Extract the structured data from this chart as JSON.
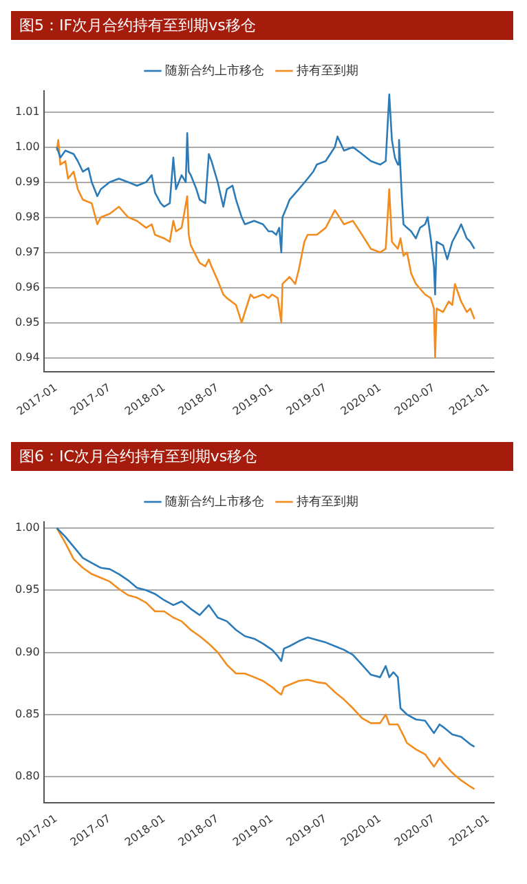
{
  "chart_data": [
    {
      "type": "line",
      "title": "图5：IF次月合约持有至到期vs移仓",
      "xlim": [
        "2016-11-20",
        "2021-01-20"
      ],
      "xticks": [
        "2017-01",
        "2017-07",
        "2018-01",
        "2018-07",
        "2019-01",
        "2019-07",
        "2020-01",
        "2020-07",
        "2021-01"
      ],
      "ylim": [
        0.936,
        1.016
      ],
      "yticks": [
        0.94,
        0.95,
        0.96,
        0.97,
        0.98,
        0.99,
        {
          "value": 1,
          "label": "1.00"
        },
        1.01
      ],
      "grid": "y",
      "legend": "top",
      "series": [
        {
          "name": "随新合约上市移仓",
          "color": "#2b7bb9",
          "x": [
            "2017-01-03",
            "2017-01-15",
            "2017-02-01",
            "2017-03-01",
            "2017-03-15",
            "2017-04-01",
            "2017-04-20",
            "2017-05-01",
            "2017-05-20",
            "2017-06-01",
            "2017-07-01",
            "2017-08-01",
            "2017-09-01",
            "2017-10-01",
            "2017-11-01",
            "2017-11-20",
            "2017-12-01",
            "2017-12-20",
            "2018-01-01",
            "2018-01-20",
            "2018-02-01",
            "2018-02-10",
            "2018-03-01",
            "2018-03-15",
            "2018-03-20",
            "2018-03-25",
            "2018-04-01",
            "2018-04-20",
            "2018-05-01",
            "2018-05-20",
            "2018-06-01",
            "2018-06-10",
            "2018-07-01",
            "2018-07-20",
            "2018-08-01",
            "2018-08-20",
            "2018-09-01",
            "2018-09-20",
            "2018-10-01",
            "2018-11-01",
            "2018-12-01",
            "2018-12-20",
            "2019-01-01",
            "2019-01-15",
            "2019-01-25",
            "2019-02-01",
            "2019-02-05",
            "2019-02-20",
            "2019-03-01",
            "2019-04-01",
            "2019-05-01",
            "2019-05-20",
            "2019-06-01",
            "2019-07-01",
            "2019-08-01",
            "2019-08-10",
            "2019-09-01",
            "2019-10-01",
            "2019-11-01",
            "2019-12-01",
            "2020-01-01",
            "2020-01-20",
            "2020-02-01",
            "2020-02-10",
            "2020-02-20",
            "2020-03-01",
            "2020-03-05",
            "2020-03-15",
            "2020-03-20",
            "2020-04-01",
            "2020-04-15",
            "2020-05-01",
            "2020-05-15",
            "2020-06-01",
            "2020-06-10",
            "2020-06-20",
            "2020-07-01",
            "2020-07-05",
            "2020-07-10",
            "2020-08-01",
            "2020-08-15",
            "2020-09-01",
            "2020-09-20",
            "2020-10-01",
            "2020-10-20",
            "2020-11-01",
            "2020-11-15"
          ],
          "values": [
            1.0,
            0.997,
            0.999,
            0.998,
            0.996,
            0.993,
            0.994,
            0.99,
            0.986,
            0.988,
            0.99,
            0.991,
            0.99,
            0.989,
            0.99,
            0.992,
            0.987,
            0.984,
            0.983,
            0.984,
            0.997,
            0.988,
            0.992,
            0.99,
            1.004,
            0.993,
            0.992,
            0.988,
            0.985,
            0.984,
            0.998,
            0.996,
            0.99,
            0.983,
            0.988,
            0.989,
            0.985,
            0.98,
            0.978,
            0.979,
            0.978,
            0.976,
            0.976,
            0.975,
            0.977,
            0.97,
            0.98,
            0.983,
            0.985,
            0.988,
            0.991,
            0.993,
            0.995,
            0.996,
            1.0,
            1.003,
            0.999,
            1.0,
            0.998,
            0.996,
            0.995,
            0.996,
            1.015,
            1.002,
            0.997,
            0.995,
            1.002,
            0.985,
            0.978,
            0.977,
            0.976,
            0.974,
            0.977,
            0.978,
            0.98,
            0.974,
            0.966,
            0.958,
            0.973,
            0.972,
            0.968,
            0.973,
            0.976,
            0.978,
            0.974,
            0.973,
            0.971
          ]
        },
        {
          "name": "持有至到期",
          "color": "#f28c1e",
          "x": [
            "2017-01-03",
            "2017-01-08",
            "2017-01-15",
            "2017-02-01",
            "2017-02-10",
            "2017-03-01",
            "2017-03-15",
            "2017-04-01",
            "2017-05-01",
            "2017-05-20",
            "2017-06-01",
            "2017-07-01",
            "2017-08-01",
            "2017-09-01",
            "2017-10-01",
            "2017-11-01",
            "2017-11-20",
            "2017-12-01",
            "2018-01-01",
            "2018-01-20",
            "2018-02-01",
            "2018-02-10",
            "2018-03-01",
            "2018-03-20",
            "2018-03-25",
            "2018-04-01",
            "2018-05-01",
            "2018-05-20",
            "2018-06-01",
            "2018-06-10",
            "2018-07-01",
            "2018-07-20",
            "2018-08-01",
            "2018-09-01",
            "2018-09-20",
            "2018-10-01",
            "2018-10-20",
            "2018-11-01",
            "2018-12-01",
            "2018-12-20",
            "2019-01-01",
            "2019-01-20",
            "2019-02-01",
            "2019-02-05",
            "2019-03-01",
            "2019-03-20",
            "2019-04-01",
            "2019-04-20",
            "2019-05-01",
            "2019-06-01",
            "2019-07-01",
            "2019-08-01",
            "2019-09-01",
            "2019-10-01",
            "2019-11-01",
            "2019-12-01",
            "2020-01-01",
            "2020-01-20",
            "2020-02-01",
            "2020-02-10",
            "2020-03-01",
            "2020-03-10",
            "2020-03-20",
            "2020-04-01",
            "2020-04-15",
            "2020-05-01",
            "2020-06-01",
            "2020-06-20",
            "2020-07-01",
            "2020-07-05",
            "2020-07-10",
            "2020-08-01",
            "2020-08-20",
            "2020-09-01",
            "2020-09-10",
            "2020-10-01",
            "2020-10-20",
            "2020-11-01",
            "2020-11-15"
          ],
          "values": [
            0.999,
            1.002,
            0.995,
            0.996,
            0.991,
            0.993,
            0.988,
            0.985,
            0.984,
            0.978,
            0.98,
            0.981,
            0.983,
            0.98,
            0.979,
            0.977,
            0.978,
            0.975,
            0.974,
            0.973,
            0.979,
            0.976,
            0.977,
            0.986,
            0.975,
            0.972,
            0.967,
            0.966,
            0.968,
            0.966,
            0.962,
            0.958,
            0.957,
            0.955,
            0.95,
            0.953,
            0.958,
            0.957,
            0.958,
            0.957,
            0.958,
            0.957,
            0.95,
            0.961,
            0.963,
            0.961,
            0.965,
            0.973,
            0.975,
            0.975,
            0.977,
            0.982,
            0.978,
            0.979,
            0.975,
            0.971,
            0.97,
            0.971,
            0.988,
            0.973,
            0.971,
            0.974,
            0.969,
            0.97,
            0.964,
            0.961,
            0.958,
            0.957,
            0.954,
            0.94,
            0.954,
            0.953,
            0.956,
            0.955,
            0.961,
            0.956,
            0.953,
            0.954,
            0.951
          ]
        }
      ]
    },
    {
      "type": "line",
      "title": "图6：IC次月合约持有至到期vs移仓",
      "xlim": [
        "2016-11-20",
        "2021-01-20"
      ],
      "xticks": [
        "2017-01",
        "2017-07",
        "2018-01",
        "2018-07",
        "2019-01",
        "2019-07",
        "2020-01",
        "2020-07",
        "2021-01"
      ],
      "ylim": [
        0.779,
        1.005
      ],
      "yticks": [
        {
          "value": 0.8,
          "label": "0.80"
        },
        0.85,
        {
          "value": 0.9,
          "label": "0.90"
        },
        0.95,
        {
          "value": 1,
          "label": "1.00"
        }
      ],
      "grid": "y",
      "legend": "top",
      "series": [
        {
          "name": "随新合约上市移仓",
          "color": "#2b7bb9",
          "x": [
            "2017-01-03",
            "2017-02-01",
            "2017-03-01",
            "2017-04-01",
            "2017-05-01",
            "2017-06-01",
            "2017-07-01",
            "2017-08-01",
            "2017-09-01",
            "2017-10-01",
            "2017-11-01",
            "2017-12-01",
            "2018-01-01",
            "2018-02-01",
            "2018-03-01",
            "2018-04-01",
            "2018-05-01",
            "2018-06-01",
            "2018-07-01",
            "2018-08-01",
            "2018-09-01",
            "2018-10-01",
            "2018-11-01",
            "2018-12-01",
            "2019-01-01",
            "2019-01-20",
            "2019-02-01",
            "2019-02-10",
            "2019-03-01",
            "2019-04-01",
            "2019-05-01",
            "2019-06-01",
            "2019-07-01",
            "2019-08-01",
            "2019-09-01",
            "2019-10-01",
            "2019-11-01",
            "2019-12-01",
            "2020-01-01",
            "2020-01-20",
            "2020-02-01",
            "2020-02-15",
            "2020-03-01",
            "2020-03-10",
            "2020-04-01",
            "2020-05-01",
            "2020-06-01",
            "2020-07-01",
            "2020-07-20",
            "2020-08-01",
            "2020-09-01",
            "2020-10-01",
            "2020-11-01",
            "2020-11-15"
          ],
          "values": [
            1.0,
            0.993,
            0.985,
            0.976,
            0.972,
            0.968,
            0.967,
            0.963,
            0.958,
            0.952,
            0.95,
            0.947,
            0.942,
            0.938,
            0.941,
            0.935,
            0.93,
            0.938,
            0.928,
            0.925,
            0.918,
            0.913,
            0.911,
            0.907,
            0.902,
            0.897,
            0.893,
            0.903,
            0.905,
            0.909,
            0.912,
            0.91,
            0.908,
            0.905,
            0.902,
            0.898,
            0.89,
            0.882,
            0.88,
            0.889,
            0.88,
            0.884,
            0.88,
            0.855,
            0.85,
            0.846,
            0.845,
            0.835,
            0.842,
            0.84,
            0.834,
            0.832,
            0.826,
            0.824
          ]
        },
        {
          "name": "持有至到期",
          "color": "#f28c1e",
          "x": [
            "2017-01-03",
            "2017-02-01",
            "2017-03-01",
            "2017-04-01",
            "2017-05-01",
            "2017-06-01",
            "2017-07-01",
            "2017-08-01",
            "2017-09-01",
            "2017-10-01",
            "2017-11-01",
            "2017-12-01",
            "2018-01-01",
            "2018-02-01",
            "2018-03-01",
            "2018-04-01",
            "2018-05-01",
            "2018-06-01",
            "2018-07-01",
            "2018-08-01",
            "2018-09-01",
            "2018-10-01",
            "2018-11-01",
            "2018-12-01",
            "2019-01-01",
            "2019-01-20",
            "2019-02-01",
            "2019-02-10",
            "2019-03-01",
            "2019-04-01",
            "2019-05-01",
            "2019-06-01",
            "2019-07-01",
            "2019-08-01",
            "2019-09-01",
            "2019-10-01",
            "2019-11-01",
            "2019-12-01",
            "2020-01-01",
            "2020-01-20",
            "2020-02-01",
            "2020-03-01",
            "2020-03-20",
            "2020-04-01",
            "2020-05-01",
            "2020-06-01",
            "2020-07-01",
            "2020-07-20",
            "2020-08-01",
            "2020-09-01",
            "2020-10-01",
            "2020-11-01",
            "2020-11-15"
          ],
          "values": [
            1.0,
            0.988,
            0.975,
            0.968,
            0.963,
            0.96,
            0.957,
            0.951,
            0.946,
            0.944,
            0.94,
            0.933,
            0.933,
            0.928,
            0.925,
            0.918,
            0.913,
            0.907,
            0.9,
            0.89,
            0.883,
            0.883,
            0.88,
            0.877,
            0.872,
            0.868,
            0.866,
            0.872,
            0.874,
            0.877,
            0.878,
            0.876,
            0.875,
            0.868,
            0.862,
            0.855,
            0.847,
            0.843,
            0.843,
            0.85,
            0.842,
            0.842,
            0.833,
            0.827,
            0.822,
            0.818,
            0.808,
            0.815,
            0.811,
            0.803,
            0.797,
            0.792,
            0.79
          ]
        }
      ]
    }
  ]
}
